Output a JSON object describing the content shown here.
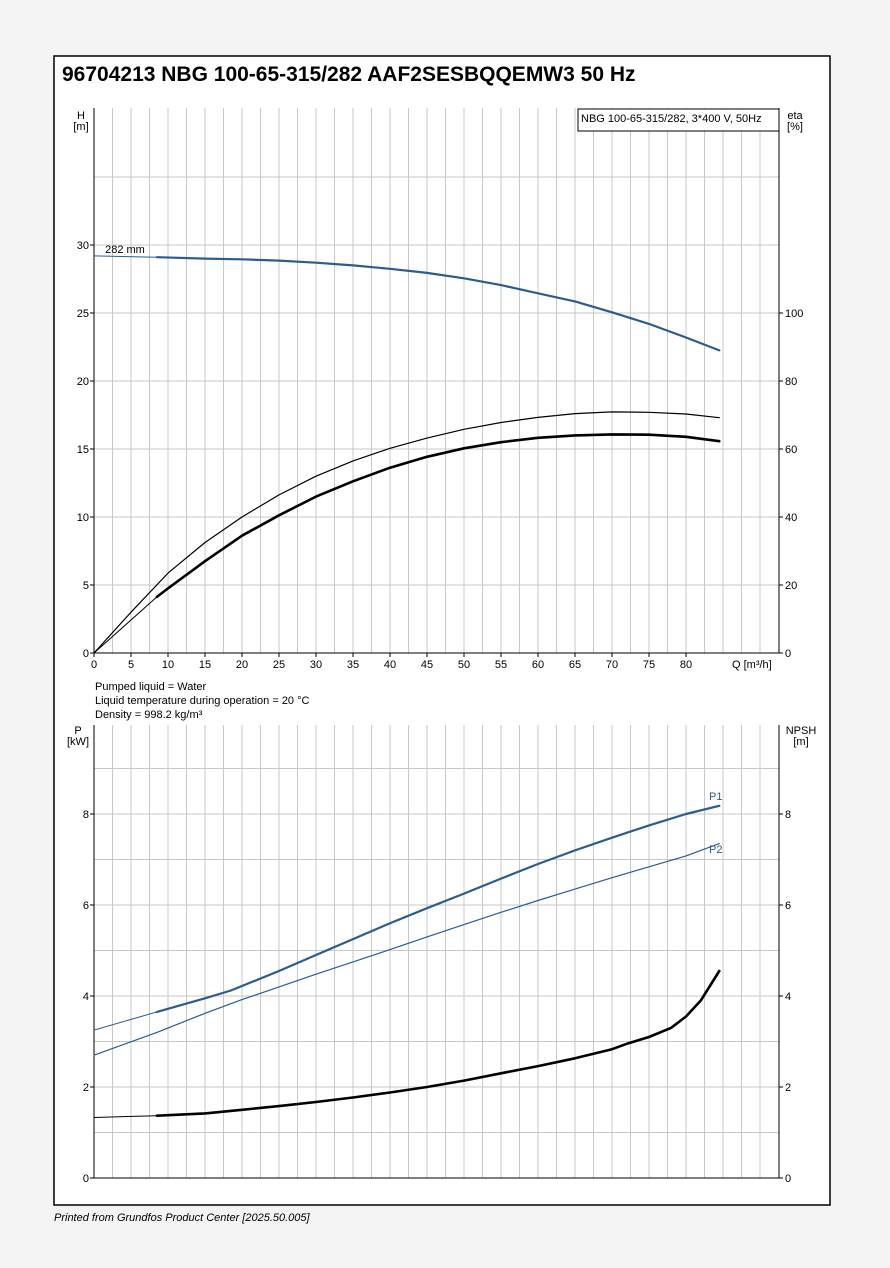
{
  "title": "96704213 NBG 100-65-315/282 AAF2SESBQQEMW3 50 Hz",
  "footer": "Printed from Grundfos Product Center [2025.50.005]",
  "colors": {
    "blue": "#2b5d8f",
    "black": "#000000",
    "grid": "#c8c8c8",
    "page": "#ffffff",
    "background": "#f4f4f4"
  },
  "chart_data": [
    {
      "type": "line",
      "legend_box": "NBG 100-65-315/282, 3*400 V, 50Hz",
      "legend_placement": "top-right",
      "grid": true,
      "xlabel": "Q [m³/h]",
      "xlim": [
        0,
        92
      ],
      "x_ticks": [
        0,
        5,
        10,
        15,
        20,
        25,
        30,
        35,
        40,
        45,
        50,
        55,
        60,
        65,
        70,
        75,
        80
      ],
      "y_left": {
        "label_line1": "H",
        "label_line2": "[m]",
        "lim": [
          0,
          40
        ],
        "ticks": [
          0,
          5,
          10,
          15,
          20,
          25,
          30
        ]
      },
      "y_right": {
        "label_line1": "eta",
        "label_line2": "[%]",
        "lim": [
          0,
          160
        ],
        "ticks": [
          0,
          20,
          40,
          60,
          80,
          100
        ]
      },
      "annotations": [
        {
          "text": "282 mm",
          "x": 1.5,
          "y": 29.4
        }
      ],
      "series": [
        {
          "key": "H",
          "axis": "left",
          "color": "blue",
          "width": 2.2,
          "thin_x": [
            0,
            8.5
          ],
          "x": [
            8.5,
            15,
            20,
            25,
            30,
            35,
            40,
            45,
            50,
            55,
            60,
            65,
            70,
            75,
            80,
            84.5
          ],
          "y": [
            29.1,
            29.0,
            28.95,
            28.85,
            28.7,
            28.5,
            28.25,
            27.95,
            27.55,
            27.05,
            26.45,
            25.85,
            25.05,
            24.2,
            23.2,
            22.25
          ],
          "thin_y": [
            29.2,
            29.1
          ]
        },
        {
          "key": "eta-thin",
          "axis": "right",
          "color": "black",
          "width": 1.2,
          "x": [
            0,
            5,
            10,
            15,
            20,
            25,
            30,
            35,
            40,
            45,
            50,
            55,
            60,
            65,
            70,
            75,
            80,
            84.5
          ],
          "y": [
            0,
            12,
            23.5,
            32.5,
            40,
            46.5,
            52,
            56.5,
            60.2,
            63.2,
            65.8,
            67.8,
            69.3,
            70.4,
            70.9,
            70.8,
            70.3,
            69.2
          ]
        },
        {
          "key": "eta-bold",
          "axis": "right",
          "color": "black",
          "width": 2.6,
          "thin_x": [
            0,
            8.5
          ],
          "thin_y": [
            0,
            16.5
          ],
          "x": [
            8.5,
            10,
            15,
            20,
            25,
            30,
            35,
            40,
            45,
            50,
            55,
            60,
            65,
            70,
            75,
            80,
            84.5
          ],
          "y": [
            16.5,
            19,
            27,
            34.5,
            40.5,
            46,
            50.5,
            54.5,
            57.7,
            60.2,
            62,
            63.3,
            64.0,
            64.3,
            64.2,
            63.6,
            62.3
          ]
        }
      ]
    },
    {
      "type": "line",
      "grid": true,
      "xlim": [
        0,
        92
      ],
      "y_left": {
        "label_line1": "P",
        "label_line2": "[kW]",
        "lim": [
          0,
          10
        ],
        "ticks": [
          0,
          2,
          4,
          6,
          8
        ]
      },
      "y_right": {
        "label_line1": "NPSH",
        "label_line2": "[m]",
        "lim": [
          0,
          10
        ],
        "ticks": [
          0,
          2,
          4,
          6,
          8
        ]
      },
      "series": [
        {
          "key": "P1",
          "name": "P1",
          "axis": "left",
          "color": "blue",
          "width": 2.2,
          "thin_x": [
            0,
            8.5
          ],
          "thin_y": [
            3.25,
            3.65
          ],
          "x": [
            8.5,
            15,
            18.5,
            25,
            30,
            35,
            40,
            45,
            50,
            55,
            60,
            65,
            70,
            75,
            80,
            84.5
          ],
          "y": [
            3.65,
            3.95,
            4.12,
            4.55,
            4.9,
            5.25,
            5.6,
            5.93,
            6.25,
            6.58,
            6.9,
            7.2,
            7.48,
            7.75,
            8.0,
            8.18
          ]
        },
        {
          "key": "P2",
          "name": "P2",
          "axis": "left",
          "color": "blue",
          "width": 1.2,
          "x": [
            0,
            8.5,
            15,
            20,
            25,
            30,
            35,
            40,
            45,
            50,
            55,
            60,
            65,
            70,
            75,
            80,
            84.5
          ],
          "y": [
            2.7,
            3.2,
            3.62,
            3.92,
            4.2,
            4.48,
            4.75,
            5.02,
            5.3,
            5.57,
            5.84,
            6.1,
            6.35,
            6.6,
            6.84,
            7.08,
            7.35
          ]
        },
        {
          "key": "NPSH",
          "axis": "right",
          "color": "black",
          "width": 2.6,
          "thin_x": [
            0,
            8.5
          ],
          "thin_y": [
            1.33,
            1.37
          ],
          "x": [
            8.5,
            15,
            20,
            25,
            30,
            35,
            40,
            45,
            50,
            55,
            60,
            65,
            70,
            72,
            75,
            78,
            80,
            82,
            84.5
          ],
          "y": [
            1.37,
            1.42,
            1.5,
            1.58,
            1.67,
            1.77,
            1.88,
            2.0,
            2.14,
            2.3,
            2.46,
            2.63,
            2.83,
            2.95,
            3.1,
            3.3,
            3.55,
            3.9,
            4.55
          ]
        }
      ]
    }
  ],
  "notes": [
    "Pumped liquid = Water",
    "Liquid temperature during operation = 20 °C",
    "Density = 998.2 kg/m³"
  ],
  "labels": {
    "p1": "P1",
    "p2": "P2"
  }
}
